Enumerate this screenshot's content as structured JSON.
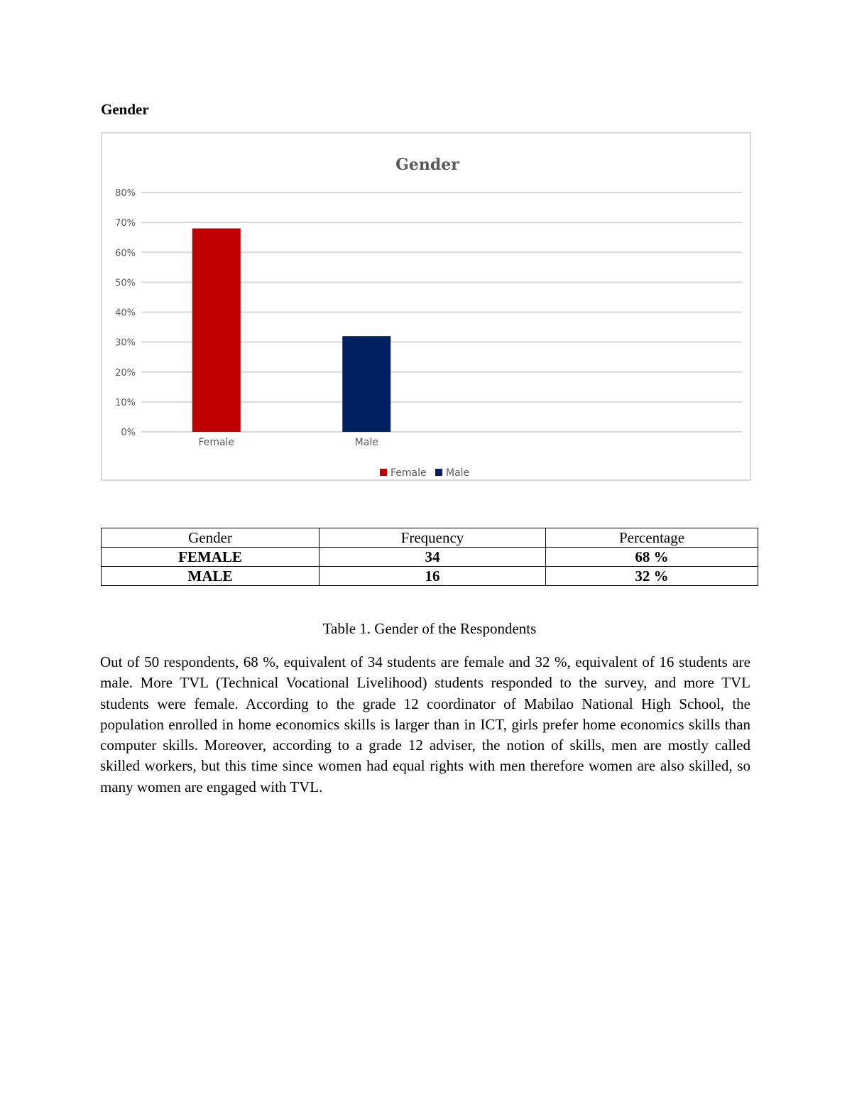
{
  "heading": "Gender",
  "chart_data": {
    "type": "bar",
    "title": "Gender",
    "categories": [
      "Female",
      "Male"
    ],
    "values": [
      68,
      32
    ],
    "value_unit": "%",
    "ylim": [
      0,
      80
    ],
    "yticks": [
      "0%",
      "10%",
      "20%",
      "30%",
      "40%",
      "50%",
      "60%",
      "70%",
      "80%"
    ],
    "grid": true,
    "legend_position": "bottom",
    "legend": [
      "Female",
      "Male"
    ],
    "colors": [
      "#c00000",
      "#002060"
    ]
  },
  "table": {
    "headers": [
      "Gender",
      "Frequency",
      "Percentage"
    ],
    "rows": [
      [
        "FEMALE",
        "34",
        "68 %"
      ],
      [
        "MALE",
        "16",
        "32 %"
      ]
    ]
  },
  "caption": "Table 1. Gender of the Respondents",
  "paragraph": "Out of 50 respondents, 68 %, equivalent of 34 students are female and 32 %, equivalent of 16 students are male. More TVL (Technical Vocational Livelihood) students responded to the survey, and more TVL students were female. According to the grade 12 coordinator of Mabilao National High School, the population enrolled in home economics skills is larger than in ICT, girls prefer home economics skills than computer skills. Moreover, according to a grade 12 adviser, the notion of skills, men are mostly called skilled workers, but this time since women had equal rights with men therefore women are also skilled, so many women are engaged with TVL."
}
